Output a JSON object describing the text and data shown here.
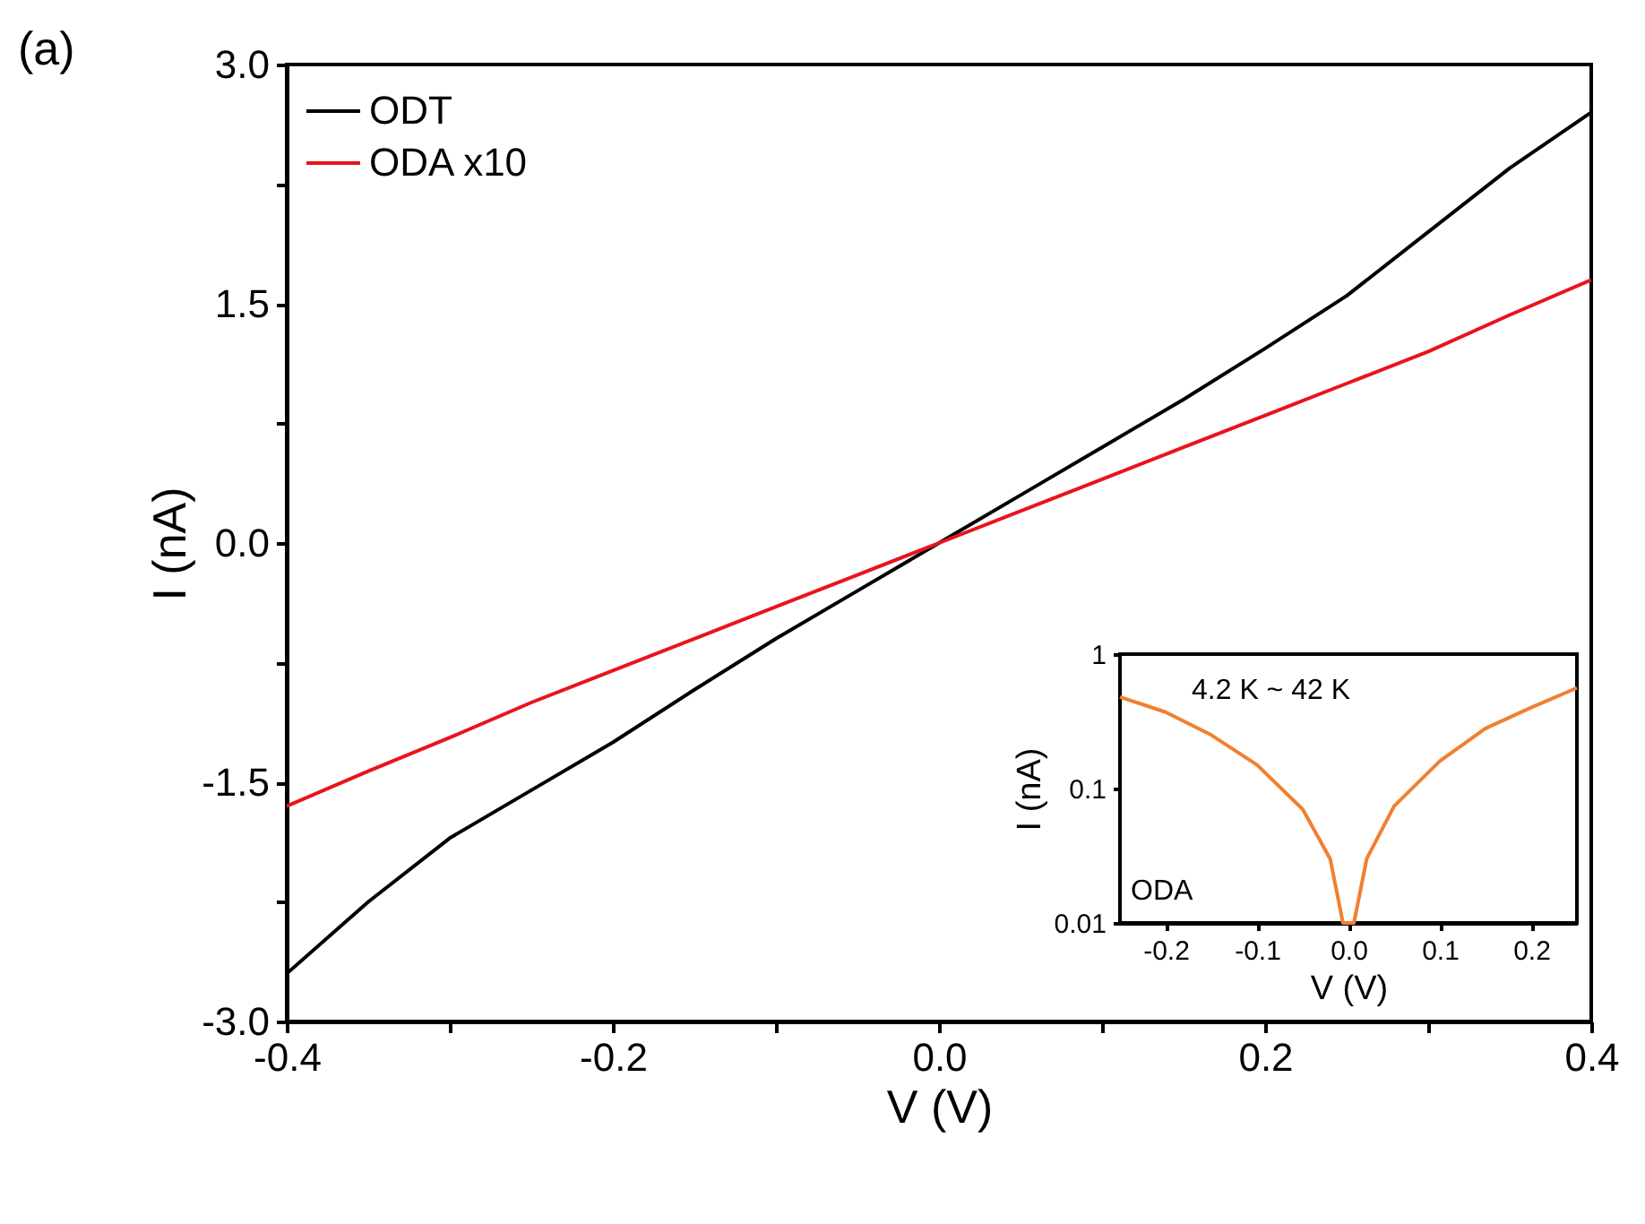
{
  "chart_data": [
    {
      "type": "line",
      "xlabel": "V (V)",
      "ylabel": "I (nA)",
      "xlim": [
        -0.4,
        0.4
      ],
      "ylim": [
        -3.0,
        3.0
      ],
      "xticks": [
        {
          "value": -0.4,
          "label": "-0.4"
        },
        {
          "value": -0.3,
          "label": null
        },
        {
          "value": -0.2,
          "label": "-0.2"
        },
        {
          "value": -0.1,
          "label": null
        },
        {
          "value": 0,
          "label": "0.0"
        },
        {
          "value": 0.1,
          "label": null
        },
        {
          "value": 0.2,
          "label": "0.2"
        },
        {
          "value": 0.3,
          "label": null
        },
        {
          "value": 0.4,
          "label": "0.4"
        }
      ],
      "yticks": [
        {
          "value": -3,
          "label": "-3.0"
        },
        {
          "value": -2.25,
          "label": null
        },
        {
          "value": -1.5,
          "label": "-1.5"
        },
        {
          "value": -0.75,
          "label": null
        },
        {
          "value": 0,
          "label": "0.0"
        },
        {
          "value": 0.75,
          "label": null
        },
        {
          "value": 1.5,
          "label": "1.5"
        },
        {
          "value": 2.25,
          "label": null
        },
        {
          "value": 3,
          "label": "3.0"
        }
      ],
      "x": [
        -0.4,
        -0.35,
        -0.3,
        -0.25,
        -0.2,
        -0.15,
        -0.1,
        -0.05,
        0,
        0.05,
        0.1,
        0.15,
        0.2,
        0.25,
        0.3,
        0.35,
        0.4
      ],
      "series": [
        {
          "name": "ODT",
          "color": "#000000",
          "values": [
            -2.7,
            -2.25,
            -1.85,
            -1.55,
            -1.25,
            -0.92,
            -0.6,
            -0.3,
            0,
            0.3,
            0.6,
            0.9,
            1.22,
            1.55,
            1.95,
            2.35,
            2.7
          ]
        },
        {
          "name": "ODA x10",
          "color": "#e8141c",
          "values": [
            -1.65,
            -1.43,
            -1.22,
            -1.0,
            -0.8,
            -0.6,
            -0.4,
            -0.2,
            0,
            0.2,
            0.4,
            0.6,
            0.8,
            1.0,
            1.2,
            1.43,
            1.65
          ]
        }
      ],
      "legend": "top left",
      "grid": false,
      "annotations": [
        "(a)"
      ]
    },
    {
      "type": "line",
      "xlabel": "V (V)",
      "ylabel": "I (nA)",
      "xlim": [
        -0.25,
        0.25
      ],
      "ylim": [
        0.01,
        1
      ],
      "log": true,
      "xticks": [
        {
          "value": -0.2,
          "label": "-0.2"
        },
        {
          "value": -0.1,
          "label": "-0.1"
        },
        {
          "value": 0,
          "label": "0.0"
        },
        {
          "value": 0.1,
          "label": "0.1"
        },
        {
          "value": 0.2,
          "label": "0.2"
        }
      ],
      "yticks": [
        0.01,
        0.1,
        1
      ],
      "x": [
        -0.25,
        -0.2,
        -0.15,
        -0.1,
        -0.05,
        -0.02,
        -0.006,
        0.006,
        0.02,
        0.05,
        0.1,
        0.15,
        0.2,
        0.25
      ],
      "series": [
        {
          "color": "#f08030",
          "values": [
            0.48,
            0.37,
            0.25,
            0.15,
            0.07,
            0.03,
            0.01,
            0.01,
            0.03,
            0.074,
            0.16,
            0.28,
            0.4,
            0.56
          ]
        }
      ],
      "legend": false,
      "grid": false,
      "annotations": [
        "4.2 K ~ 42 K",
        "ODA"
      ]
    }
  ]
}
